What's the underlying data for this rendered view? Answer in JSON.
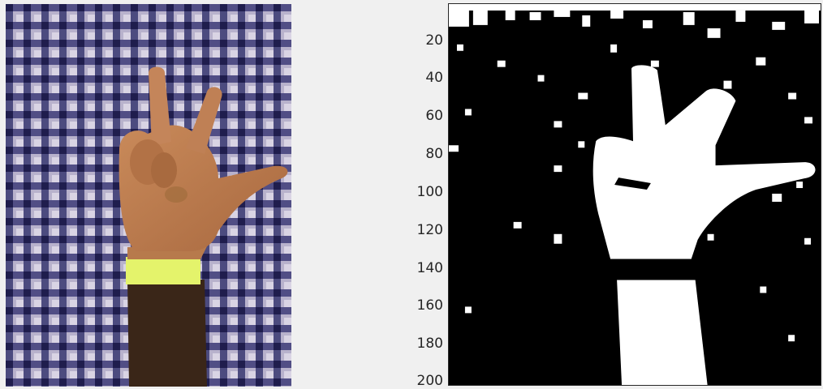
{
  "figure": {
    "left_image": {
      "description_icon": "photo-hand-gesture"
    },
    "right_plot": {
      "y_ticks": [
        "20",
        "40",
        "60",
        "80",
        "100",
        "120",
        "140",
        "160",
        "180",
        "200"
      ],
      "colors": {
        "foreground": "#ffffff",
        "background": "#000000",
        "axis": "#262626"
      }
    }
  }
}
